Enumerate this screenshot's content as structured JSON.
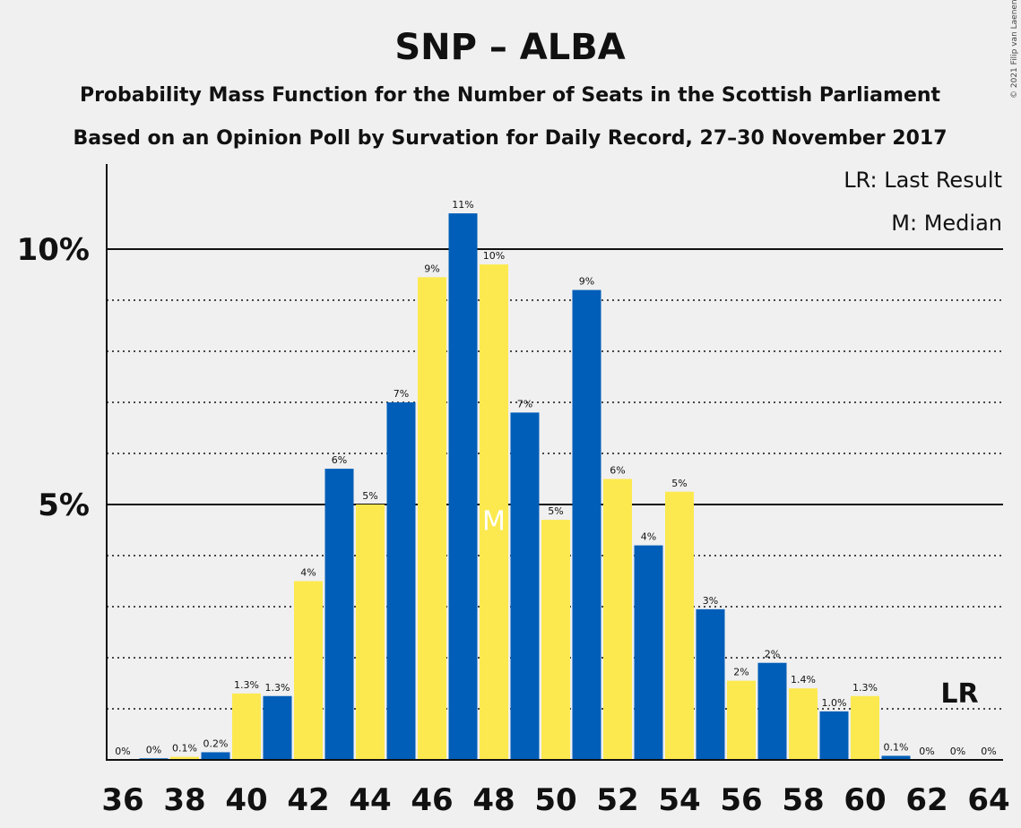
{
  "chart_data": {
    "type": "bar",
    "title": "SNP – ALBA",
    "subtitle_1": "Probability Mass Function for the Number of Seats in the Scottish Parliament",
    "subtitle_2": "Based on an Opinion Poll by Survation for Daily Record, 27–30 November 2017",
    "copyright": "© 2021 Filip van Laenen",
    "legend": {
      "last_result": "LR: Last Result",
      "median": "M: Median"
    },
    "y_ticks": [
      {
        "value": 5,
        "label": "5%"
      },
      {
        "value": 10,
        "label": "10%"
      }
    ],
    "ylim": [
      0,
      11.6
    ],
    "x_tick_labels": [
      "36",
      "38",
      "40",
      "42",
      "44",
      "46",
      "48",
      "50",
      "52",
      "54",
      "56",
      "58",
      "60",
      "62",
      "64"
    ],
    "bars": [
      {
        "seats": 36,
        "value": 0.0,
        "label": "0%"
      },
      {
        "seats": 37,
        "value": 0.03,
        "label": "0%"
      },
      {
        "seats": 38,
        "value": 0.06,
        "label": "0.1%"
      },
      {
        "seats": 39,
        "value": 0.15,
        "label": "0.2%"
      },
      {
        "seats": 40,
        "value": 1.3,
        "label": "1.3%"
      },
      {
        "seats": 41,
        "value": 1.25,
        "label": "1.3%"
      },
      {
        "seats": 42,
        "value": 3.5,
        "label": "4%"
      },
      {
        "seats": 43,
        "value": 5.7,
        "label": "6%"
      },
      {
        "seats": 44,
        "value": 5.0,
        "label": "5%"
      },
      {
        "seats": 45,
        "value": 7.0,
        "label": "7%"
      },
      {
        "seats": 46,
        "value": 9.45,
        "label": "9%"
      },
      {
        "seats": 47,
        "value": 10.7,
        "label": "11%"
      },
      {
        "seats": 48,
        "value": 9.7,
        "label": "10%"
      },
      {
        "seats": 49,
        "value": 6.8,
        "label": "7%"
      },
      {
        "seats": 50,
        "value": 4.7,
        "label": "5%"
      },
      {
        "seats": 51,
        "value": 9.2,
        "label": "9%"
      },
      {
        "seats": 52,
        "value": 5.5,
        "label": "6%"
      },
      {
        "seats": 53,
        "value": 4.2,
        "label": "4%"
      },
      {
        "seats": 54,
        "value": 5.25,
        "label": "5%"
      },
      {
        "seats": 55,
        "value": 2.95,
        "label": "3%"
      },
      {
        "seats": 56,
        "value": 1.55,
        "label": "2%"
      },
      {
        "seats": 57,
        "value": 1.9,
        "label": "2%"
      },
      {
        "seats": 58,
        "value": 1.4,
        "label": "1.4%"
      },
      {
        "seats": 59,
        "value": 0.95,
        "label": "1.0%"
      },
      {
        "seats": 60,
        "value": 1.25,
        "label": "1.3%"
      },
      {
        "seats": 61,
        "value": 0.08,
        "label": "0.1%"
      },
      {
        "seats": 62,
        "value": 0.0,
        "label": "0%"
      },
      {
        "seats": 63,
        "value": 0.0,
        "label": "0%"
      },
      {
        "seats": 64,
        "value": 0.0,
        "label": "0%"
      }
    ],
    "median_seats": 48,
    "median_marker": "M",
    "last_result_seats": 63,
    "last_result_marker": "LR",
    "colors": {
      "blue": "#005eb8",
      "yellow": "#fce94f",
      "background": "#f0f0f0",
      "text": "#111111",
      "median_text": "#ffffff"
    }
  }
}
